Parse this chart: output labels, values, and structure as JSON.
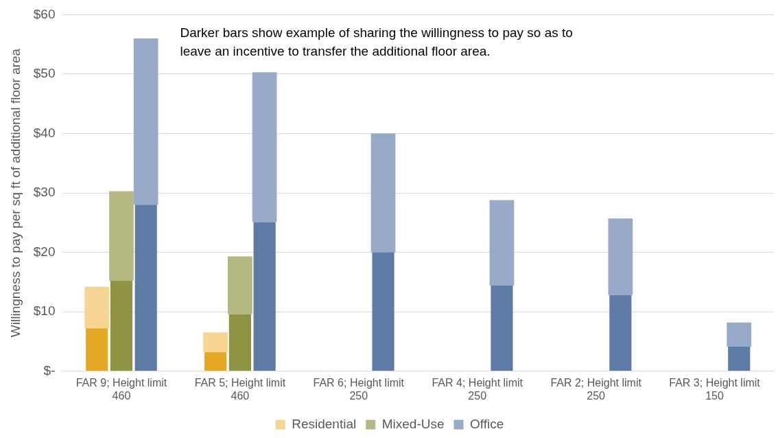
{
  "chart_data": {
    "type": "bar",
    "ylabel": "Willingness to pay per sq ft of additional floor area",
    "categories": [
      "FAR 9; Height limit 460",
      "FAR 5; Height limit 460",
      "FAR 6; Height limit 250",
      "FAR 4; Height limit 250",
      "FAR 2; Height limit 250",
      "FAR 3; Height limit 150"
    ],
    "series": [
      {
        "color": "#e5a823",
        "values": [
          7.2,
          3.2,
          null,
          null,
          null,
          null
        ]
      },
      {
        "name": "Residential",
        "color": "#f5d591",
        "base": [
          7.2,
          3.2,
          null,
          null,
          null,
          null
        ],
        "values": [
          7.0,
          3.3,
          null,
          null,
          null,
          null
        ]
      },
      {
        "color": "#8e9441",
        "values": [
          15.2,
          9.6,
          null,
          null,
          null,
          null
        ]
      },
      {
        "name": "Mixed-Use",
        "color": "#b6b882",
        "base": [
          15.2,
          9.6,
          null,
          null,
          null,
          null
        ],
        "values": [
          15.1,
          9.7,
          null,
          null,
          null,
          null
        ]
      },
      {
        "color": "#5e7ba6",
        "values": [
          28,
          25.1,
          20,
          14.4,
          12.8,
          4.1
        ]
      },
      {
        "name": "Office",
        "color": "#98aac9",
        "base": [
          28,
          25.1,
          20,
          14.4,
          12.8,
          4.1
        ],
        "values": [
          28,
          25.2,
          20,
          14.4,
          12.9,
          4.1
        ]
      }
    ],
    "ylim": [
      0,
      60
    ],
    "yticks": [
      {
        "value": 0,
        "label": "$-"
      },
      {
        "value": 10,
        "label": "$10"
      },
      {
        "value": 20,
        "label": "$20"
      },
      {
        "value": 30,
        "label": "$30"
      },
      {
        "value": 40,
        "label": "$40"
      },
      {
        "value": 50,
        "label": "$50"
      },
      {
        "value": 60,
        "label": "$60"
      }
    ],
    "grid": "y",
    "legend": "bottom",
    "annotations": [
      "Darker bars show example of sharing the willingness to pay so as to leave an incentive to transfer the additional floor area."
    ]
  }
}
